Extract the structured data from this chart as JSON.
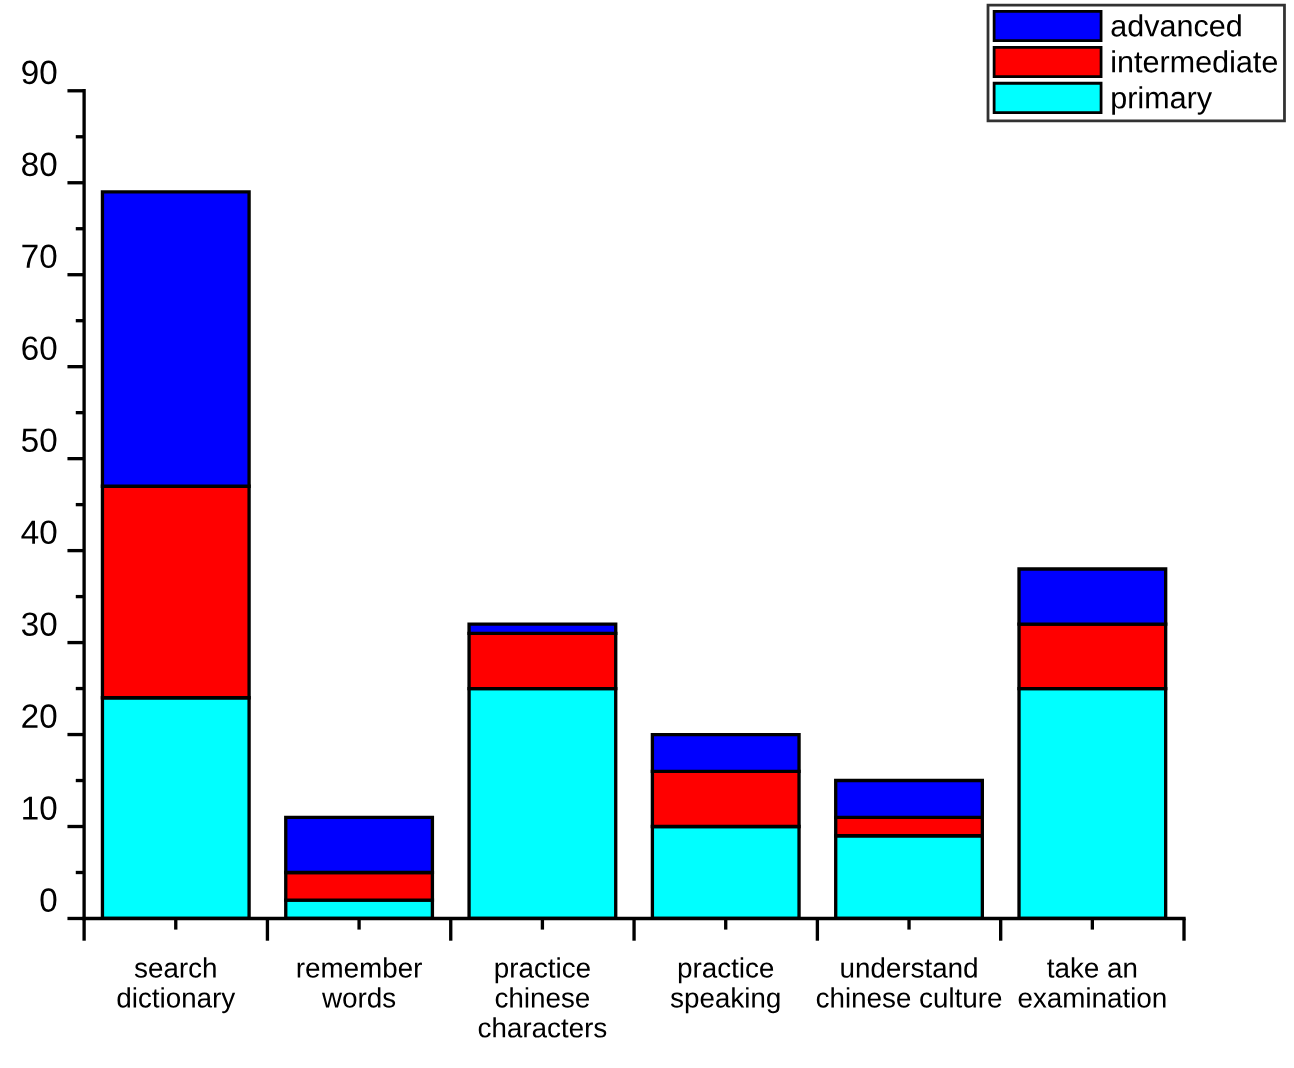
{
  "chart_data": {
    "type": "bar",
    "stacked": true,
    "categories": [
      "search\ndictionary",
      "remember\nwords",
      "practice\nchinese\ncharacters",
      "practice\nspeaking",
      "understand\nchinese culture",
      "take an\nexamination"
    ],
    "series": [
      {
        "name": "primary",
        "color": "#00ffff",
        "values": [
          24,
          2,
          25,
          10,
          9,
          25
        ]
      },
      {
        "name": "intermediate",
        "color": "#ff0000",
        "values": [
          23,
          3,
          6,
          6,
          2,
          7
        ]
      },
      {
        "name": "advanced",
        "color": "#0000ff",
        "values": [
          32,
          6,
          1,
          4,
          4,
          6
        ]
      }
    ],
    "ylim": [
      0,
      90
    ],
    "yticks": [
      0,
      10,
      20,
      30,
      40,
      50,
      60,
      70,
      80,
      90
    ],
    "grid": false,
    "legend": "top right"
  }
}
